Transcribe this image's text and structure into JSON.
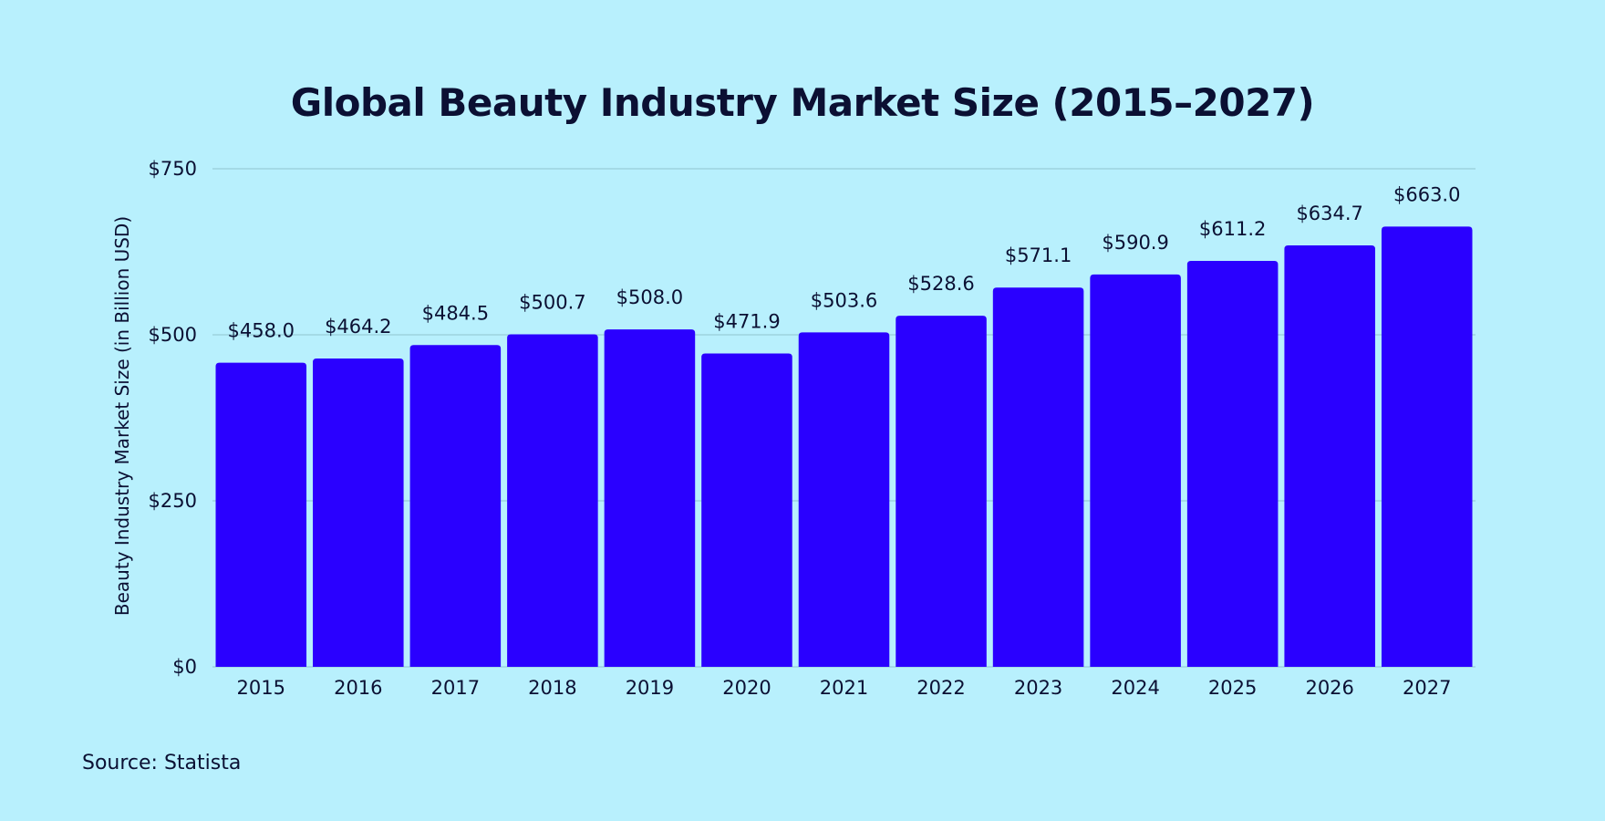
{
  "chart_data": {
    "type": "bar",
    "title": "Global Beauty Industry Market Size (2015–2027)",
    "xlabel": "",
    "ylabel": "Beauty Industry Market Size (in Billion USD)",
    "categories": [
      "2015",
      "2016",
      "2017",
      "2018",
      "2019",
      "2020",
      "2021",
      "2022",
      "2023",
      "2024",
      "2025",
      "2026",
      "2027"
    ],
    "values": [
      458.0,
      464.2,
      484.5,
      500.7,
      508.0,
      471.9,
      503.6,
      528.6,
      571.1,
      590.9,
      611.2,
      634.7,
      663.0
    ],
    "value_labels": [
      "$458.0",
      "$464.2",
      "$484.5",
      "$500.7",
      "$508.0",
      "$471.9",
      "$503.6",
      "$528.6",
      "$571.1",
      "$590.9",
      "$611.2",
      "$634.7",
      "$663.0"
    ],
    "ylim": [
      0,
      750
    ],
    "yticks": [
      0,
      250,
      500,
      750
    ],
    "ytick_labels": [
      "$0",
      "$250",
      "$500",
      "$750"
    ],
    "grid": true,
    "legend": "none"
  },
  "colors": {
    "background": "#b8f0fd",
    "bar": "#2a00ff",
    "text": "#0b1033",
    "grid": "#8fc3cf"
  },
  "footer": {
    "source": "Source: Statista"
  }
}
